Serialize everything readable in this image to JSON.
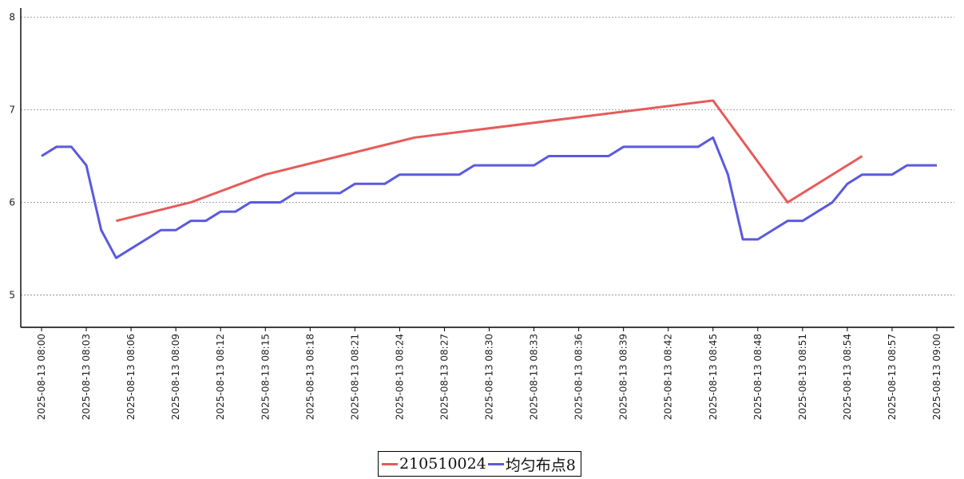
{
  "chart_data": {
    "type": "line",
    "x": [
      "2025-08-13 08:00",
      "2025-08-13 08:01",
      "2025-08-13 08:02",
      "2025-08-13 08:03",
      "2025-08-13 08:04",
      "2025-08-13 08:05",
      "2025-08-13 08:06",
      "2025-08-13 08:07",
      "2025-08-13 08:08",
      "2025-08-13 08:09",
      "2025-08-13 08:10",
      "2025-08-13 08:11",
      "2025-08-13 08:12",
      "2025-08-13 08:13",
      "2025-08-13 08:14",
      "2025-08-13 08:15",
      "2025-08-13 08:16",
      "2025-08-13 08:17",
      "2025-08-13 08:18",
      "2025-08-13 08:19",
      "2025-08-13 08:20",
      "2025-08-13 08:21",
      "2025-08-13 08:22",
      "2025-08-13 08:23",
      "2025-08-13 08:24",
      "2025-08-13 08:25",
      "2025-08-13 08:26",
      "2025-08-13 08:27",
      "2025-08-13 08:28",
      "2025-08-13 08:29",
      "2025-08-13 08:30",
      "2025-08-13 08:31",
      "2025-08-13 08:32",
      "2025-08-13 08:33",
      "2025-08-13 08:34",
      "2025-08-13 08:35",
      "2025-08-13 08:36",
      "2025-08-13 08:37",
      "2025-08-13 08:38",
      "2025-08-13 08:39",
      "2025-08-13 08:40",
      "2025-08-13 08:41",
      "2025-08-13 08:42",
      "2025-08-13 08:43",
      "2025-08-13 08:44",
      "2025-08-13 08:45",
      "2025-08-13 08:46",
      "2025-08-13 08:47",
      "2025-08-13 08:48",
      "2025-08-13 08:49",
      "2025-08-13 08:50",
      "2025-08-13 08:51",
      "2025-08-13 08:52",
      "2025-08-13 08:53",
      "2025-08-13 08:54",
      "2025-08-13 08:55",
      "2025-08-13 08:56",
      "2025-08-13 08:57",
      "2025-08-13 08:58",
      "2025-08-13 08:59",
      "2025-08-13 09:00"
    ],
    "x_tick_labels": [
      "2025-08-13 08:00",
      "2025-08-13 08:03",
      "2025-08-13 08:06",
      "2025-08-13 08:09",
      "2025-08-13 08:12",
      "2025-08-13 08:15",
      "2025-08-13 08:18",
      "2025-08-13 08:21",
      "2025-08-13 08:24",
      "2025-08-13 08:27",
      "2025-08-13 08:30",
      "2025-08-13 08:33",
      "2025-08-13 08:36",
      "2025-08-13 08:39",
      "2025-08-13 08:42",
      "2025-08-13 08:45",
      "2025-08-13 08:48",
      "2025-08-13 08:51",
      "2025-08-13 08:54",
      "2025-08-13 08:57",
      "2025-08-13 09:00"
    ],
    "y_tick_labels": [
      "5",
      "6",
      "7",
      "8"
    ],
    "ylim": [
      4.65,
      8.1
    ],
    "grid": "horizontal dashed",
    "legend_position": "bottom-center",
    "series": [
      {
        "name": "210510024",
        "color": "#e85a5a",
        "points": [
          [
            "2025-08-13 08:05",
            5.8
          ],
          [
            "2025-08-13 08:10",
            6.0
          ],
          [
            "2025-08-13 08:15",
            6.3
          ],
          [
            "2025-08-13 08:25",
            6.7
          ],
          [
            "2025-08-13 08:45",
            7.1
          ],
          [
            "2025-08-13 08:50",
            6.0
          ],
          [
            "2025-08-13 08:55",
            6.5
          ]
        ]
      },
      {
        "name": "均匀布点8",
        "color": "#5a5ae0",
        "values": [
          6.5,
          6.6,
          6.6,
          6.4,
          5.7,
          5.4,
          5.5,
          5.6,
          5.7,
          5.7,
          5.8,
          5.8,
          5.9,
          5.9,
          6.0,
          6.0,
          6.0,
          6.1,
          6.1,
          6.1,
          6.1,
          6.2,
          6.2,
          6.2,
          6.3,
          6.3,
          6.3,
          6.3,
          6.3,
          6.4,
          6.4,
          6.4,
          6.4,
          6.4,
          6.5,
          6.5,
          6.5,
          6.5,
          6.5,
          6.6,
          6.6,
          6.6,
          6.6,
          6.6,
          6.6,
          6.7,
          6.3,
          5.6,
          5.6,
          5.7,
          5.8,
          5.8,
          5.9,
          6.0,
          6.2,
          6.3,
          6.3,
          6.3,
          6.4,
          6.4,
          6.4
        ]
      }
    ]
  }
}
